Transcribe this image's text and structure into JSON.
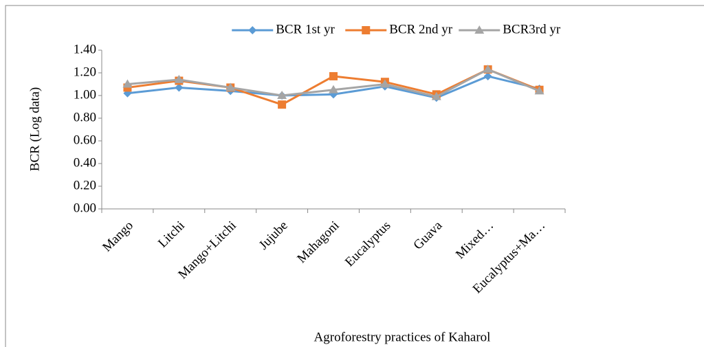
{
  "chart_data": {
    "type": "line",
    "y_label": "BCR (Log data)",
    "x_label": "Agroforestry practices of Kaharol",
    "categories": [
      "Mango",
      "Litchi",
      "Mango+Litchi",
      "Jujube",
      "Mahagoni",
      "Eucalyptus",
      "Guava",
      "Mixed…",
      "Eucalyptus+Ma…"
    ],
    "series": [
      {
        "name": "BCR 1st yr",
        "color": "#5b9bd5",
        "marker": "diamond",
        "values": [
          1.02,
          1.07,
          1.04,
          1.0,
          1.01,
          1.08,
          0.98,
          1.17,
          1.06
        ]
      },
      {
        "name": "BCR 2nd yr",
        "color": "#ed7d31",
        "marker": "square",
        "values": [
          1.07,
          1.13,
          1.07,
          0.92,
          1.17,
          1.12,
          1.01,
          1.23,
          1.05
        ]
      },
      {
        "name": "BCR3rd yr",
        "color": "#a5a5a5",
        "marker": "triangle",
        "values": [
          1.1,
          1.14,
          1.07,
          1.0,
          1.05,
          1.1,
          0.99,
          1.23,
          1.04
        ]
      }
    ],
    "ylim": [
      0,
      1.4
    ],
    "yticks": [
      {
        "value": 0,
        "label": "0.00"
      },
      {
        "value": 0.2,
        "label": "0.20"
      },
      {
        "value": 0.4,
        "label": "0.40"
      },
      {
        "value": 0.6,
        "label": "0.60"
      },
      {
        "value": 0.8,
        "label": "0.80"
      },
      {
        "value": 1,
        "label": "1.00"
      },
      {
        "value": 1.2,
        "label": "1.20"
      },
      {
        "value": 1.4,
        "label": "1.40"
      }
    ],
    "legend": "top"
  }
}
